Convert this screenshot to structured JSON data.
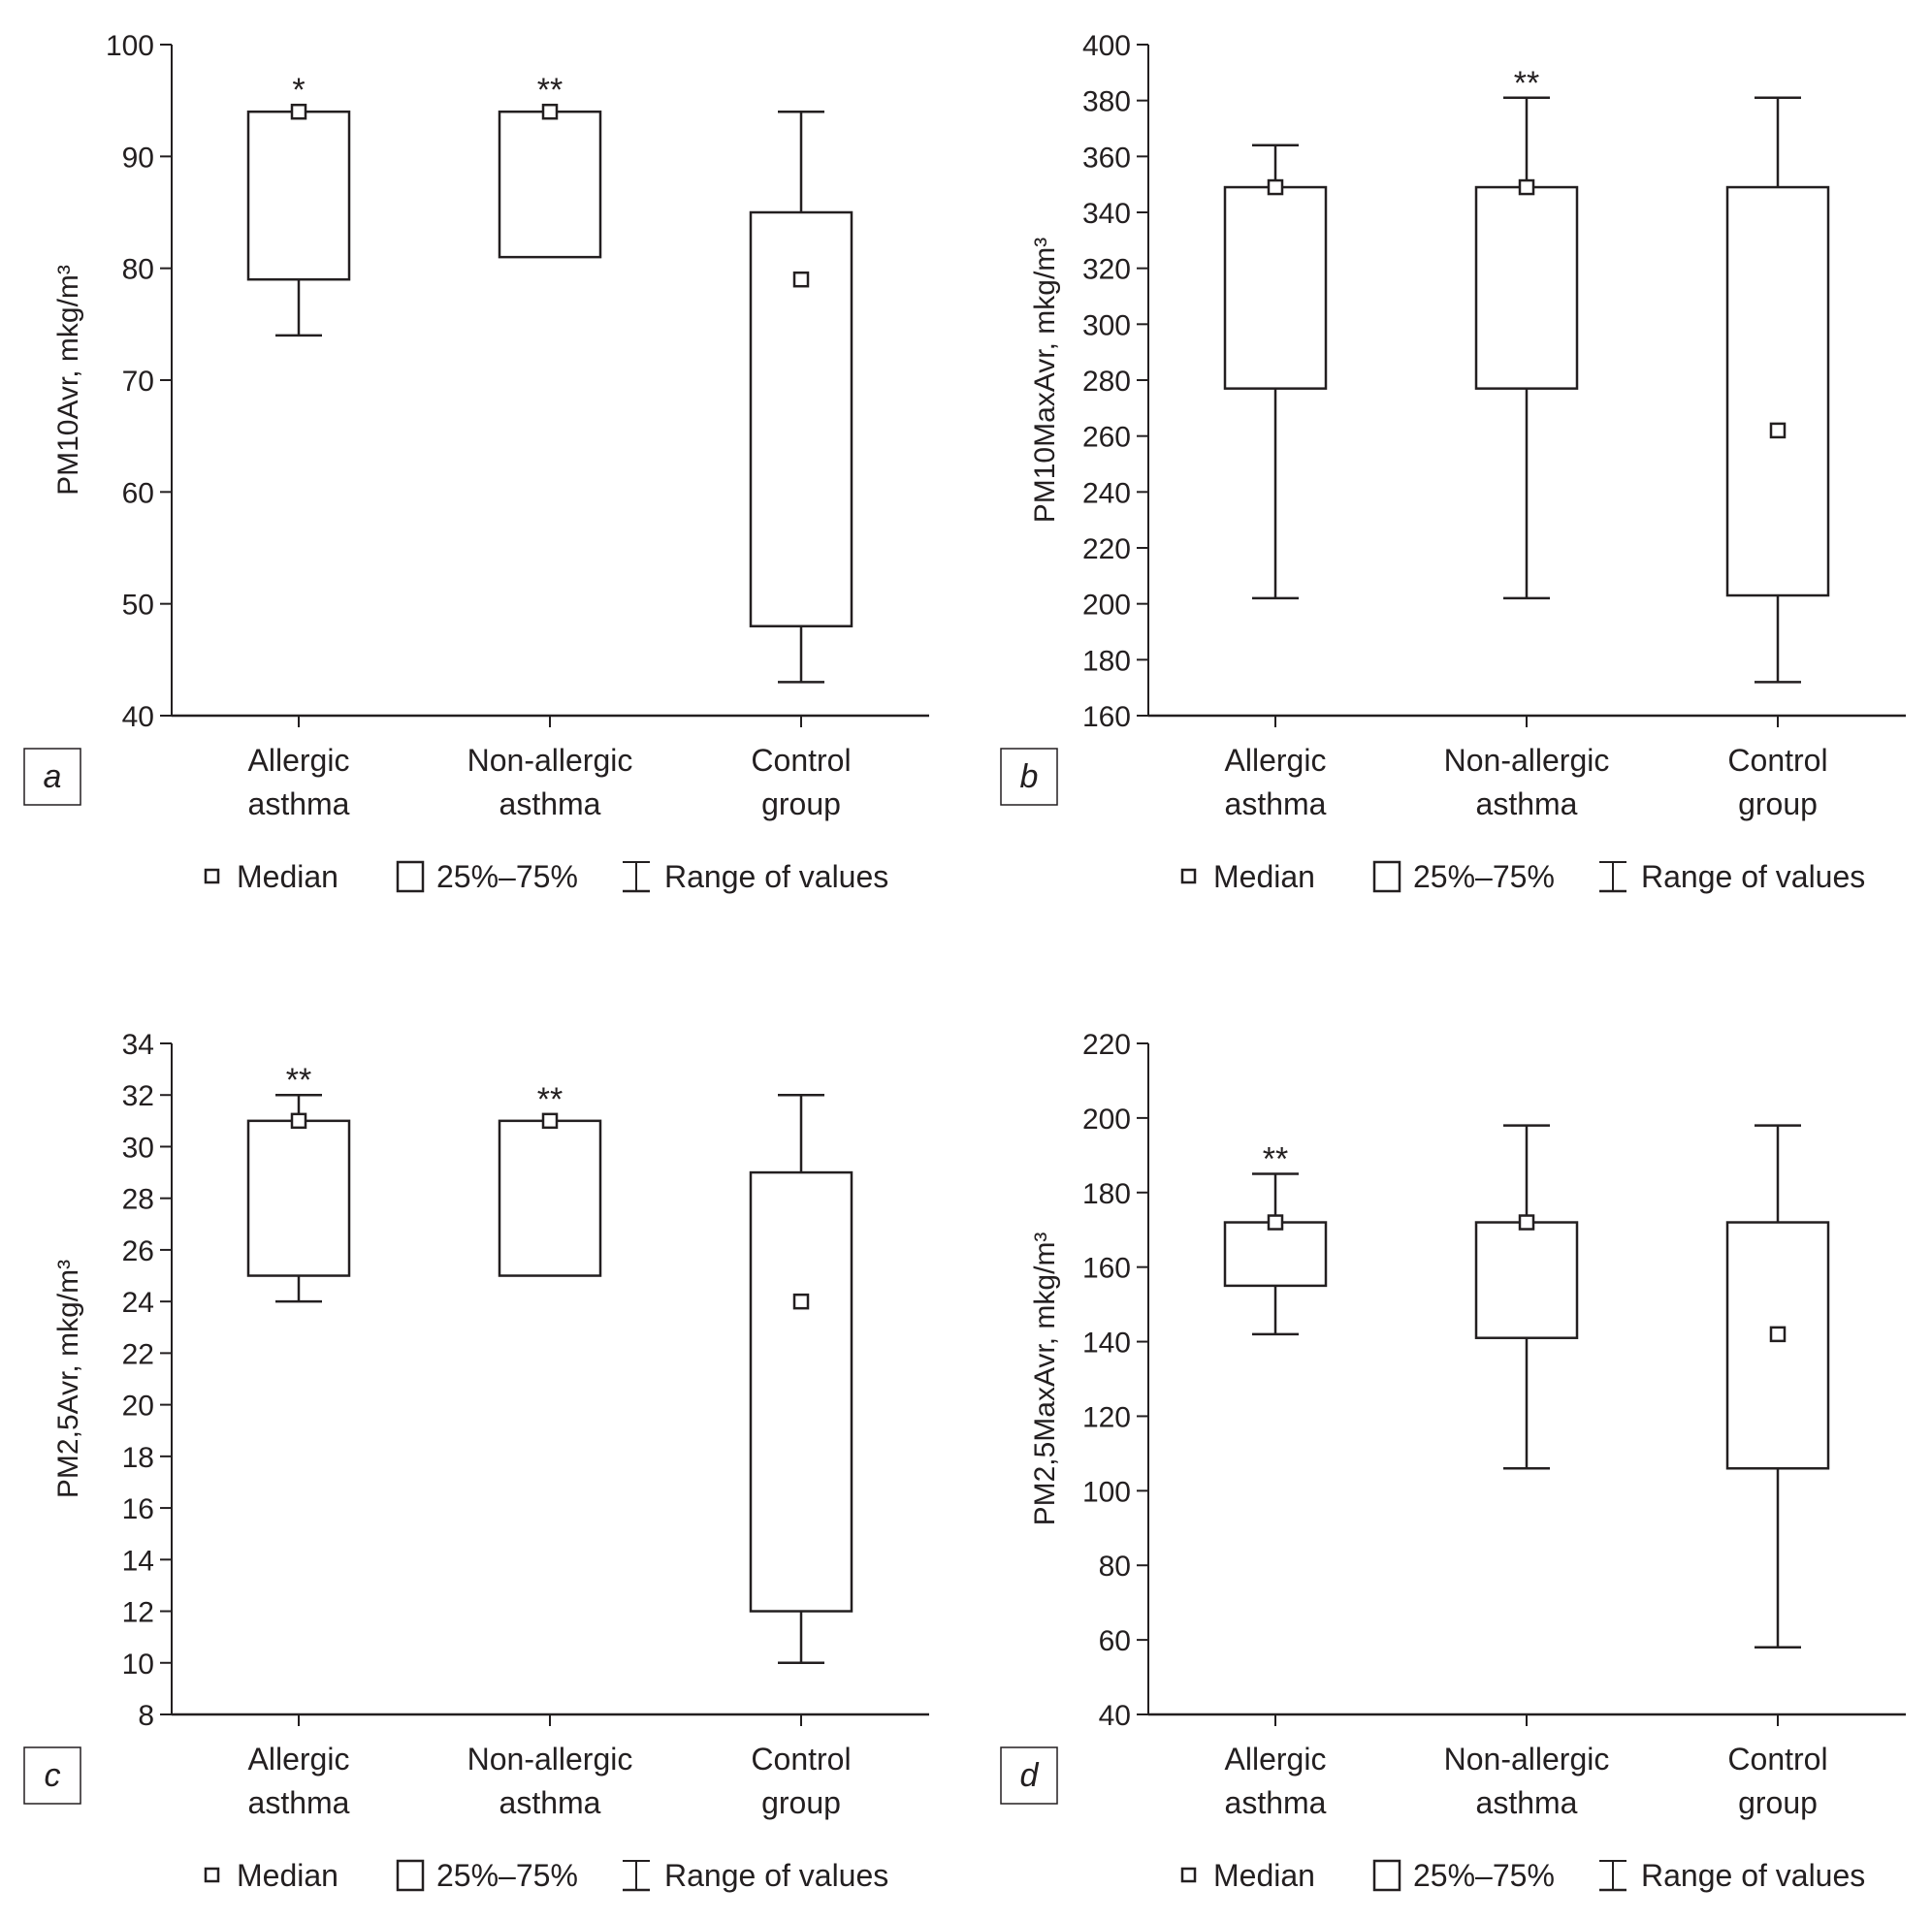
{
  "legend": {
    "median": "Median",
    "iqr": "25%–75%",
    "range": "Range of values"
  },
  "chart_data": [
    {
      "panel": "a",
      "type": "boxplot",
      "ylabel": "PM10Avr, mkg/m³",
      "ylim": [
        40,
        100
      ],
      "yticks": [
        40,
        50,
        60,
        70,
        80,
        90,
        100
      ],
      "categories": [
        [
          "Allergic",
          "asthma"
        ],
        [
          "Non-allergic",
          "asthma"
        ],
        [
          "Control",
          "group"
        ]
      ],
      "series": [
        {
          "name": "Allergic asthma",
          "min": 74,
          "q1": 79,
          "median": 94,
          "q3": 94,
          "max": 94,
          "sig": "*"
        },
        {
          "name": "Non-allergic asthma",
          "min": 81,
          "q1": 81,
          "median": 94,
          "q3": 94,
          "max": 94,
          "sig": "**"
        },
        {
          "name": "Control group",
          "min": 43,
          "q1": 48,
          "median": 79,
          "q3": 85,
          "max": 94,
          "sig": ""
        }
      ]
    },
    {
      "panel": "b",
      "type": "boxplot",
      "ylabel": "PM10MaxAvr, mkg/m³",
      "ylim": [
        160,
        400
      ],
      "yticks": [
        160,
        180,
        200,
        220,
        240,
        260,
        280,
        300,
        320,
        340,
        360,
        380,
        400
      ],
      "categories": [
        [
          "Allergic",
          "asthma"
        ],
        [
          "Non-allergic",
          "asthma"
        ],
        [
          "Control",
          "group"
        ]
      ],
      "series": [
        {
          "name": "Allergic asthma",
          "min": 202,
          "q1": 277,
          "median": 349,
          "q3": 349,
          "max": 364,
          "sig": ""
        },
        {
          "name": "Non-allergic asthma",
          "min": 202,
          "q1": 277,
          "median": 349,
          "q3": 349,
          "max": 381,
          "sig": "**"
        },
        {
          "name": "Control group",
          "min": 172,
          "q1": 203,
          "median": 262,
          "q3": 349,
          "max": 381,
          "sig": ""
        }
      ]
    },
    {
      "panel": "c",
      "type": "boxplot",
      "ylabel": "PM2,5Avr, mkg/m³",
      "ylim": [
        8,
        34
      ],
      "yticks": [
        8,
        10,
        12,
        14,
        16,
        18,
        20,
        22,
        24,
        26,
        28,
        30,
        32,
        34
      ],
      "categories": [
        [
          "Allergic",
          "asthma"
        ],
        [
          "Non-allergic",
          "asthma"
        ],
        [
          "Control",
          "group"
        ]
      ],
      "series": [
        {
          "name": "Allergic asthma",
          "min": 24,
          "q1": 25,
          "median": 31,
          "q3": 31,
          "max": 32,
          "sig": "**"
        },
        {
          "name": "Non-allergic asthma",
          "min": 25,
          "q1": 25,
          "median": 31,
          "q3": 31,
          "max": 31,
          "sig": "**"
        },
        {
          "name": "Control group",
          "min": 10,
          "q1": 12,
          "median": 24,
          "q3": 29,
          "max": 32,
          "sig": ""
        }
      ]
    },
    {
      "panel": "d",
      "type": "boxplot",
      "ylabel": "PM2,5MaxAvr, mkg/m³",
      "ylim": [
        40,
        220
      ],
      "yticks": [
        40,
        60,
        80,
        100,
        120,
        140,
        160,
        180,
        200,
        220
      ],
      "categories": [
        [
          "Allergic",
          "asthma"
        ],
        [
          "Non-allergic",
          "asthma"
        ],
        [
          "Control",
          "group"
        ]
      ],
      "series": [
        {
          "name": "Allergic asthma",
          "min": 142,
          "q1": 155,
          "median": 172,
          "q3": 172,
          "max": 185,
          "sig": "**"
        },
        {
          "name": "Non-allergic asthma",
          "min": 106,
          "q1": 141,
          "median": 172,
          "q3": 172,
          "max": 198,
          "sig": ""
        },
        {
          "name": "Control group",
          "min": 58,
          "q1": 106,
          "median": 142,
          "q3": 172,
          "max": 198,
          "sig": ""
        }
      ]
    }
  ]
}
